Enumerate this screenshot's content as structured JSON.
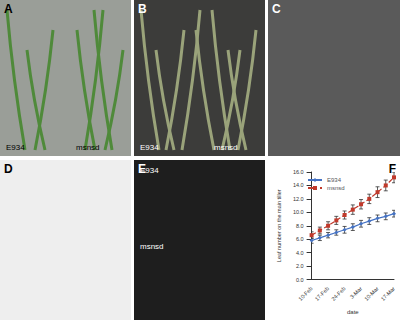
{
  "panels": [
    {
      "label": "A",
      "texts": [
        "E934",
        "msnsd"
      ]
    },
    {
      "label": "B",
      "texts": [
        "E934",
        "msnsd"
      ]
    },
    {
      "label": "C"
    },
    {
      "label": "D"
    },
    {
      "label": "E",
      "texts": [
        "E934",
        "msnsd"
      ]
    }
  ],
  "chart_data": {
    "panel": "F",
    "type": "line",
    "x_label": "date",
    "y_label": "Leaf number on the main tiller",
    "categories": [
      "10-Feb",
      null,
      "17-Feb",
      null,
      "24-Feb",
      null,
      "3-Mar",
      null,
      "10-Mar",
      null,
      "17-Mar"
    ],
    "series": [
      {
        "name": "E934",
        "color": "#4472c4",
        "marker": "diamond",
        "line_style": "solid",
        "values": [
          5.8,
          6.2,
          6.6,
          7.0,
          7.4,
          7.8,
          8.3,
          8.7,
          9.1,
          9.4,
          9.8
        ],
        "errors": [
          0.4,
          0.4,
          0.4,
          0.4,
          0.5,
          0.5,
          0.5,
          0.5,
          0.5,
          0.5,
          0.5
        ]
      },
      {
        "name": "msnsd",
        "color": "#c0392b",
        "marker": "square",
        "line_style": "dashed",
        "values": [
          6.6,
          7.3,
          8.0,
          8.8,
          9.6,
          10.4,
          11.2,
          12.0,
          13.0,
          14.0,
          15.2
        ],
        "errors": [
          0.5,
          0.5,
          0.6,
          0.6,
          0.6,
          0.7,
          0.7,
          0.7,
          0.8,
          0.8,
          0.8
        ]
      }
    ],
    "ylim": [
      0,
      16
    ],
    "yticks": [
      {
        "value": 0,
        "label": "0.0"
      },
      {
        "value": 2,
        "label": "2.0"
      },
      {
        "value": 4,
        "label": "4.0"
      },
      {
        "value": 6,
        "label": "6.0"
      },
      {
        "value": 8,
        "label": "8.0"
      },
      {
        "value": 10,
        "label": "10.0"
      },
      {
        "value": 12,
        "label": "12.0"
      },
      {
        "value": 14,
        "label": "14.0"
      },
      {
        "value": 16,
        "label": "16.0"
      }
    ],
    "legend": "upper left"
  }
}
